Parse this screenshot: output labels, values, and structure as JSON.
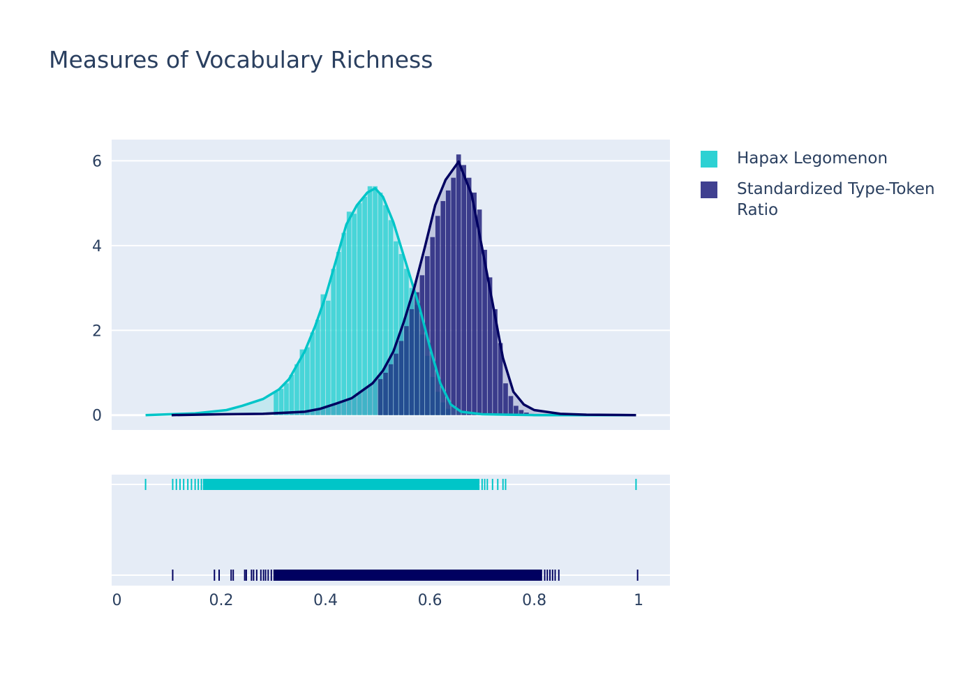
{
  "chart_data": {
    "type": "histogram",
    "title": "Measures of Vocabulary Richness",
    "xlim": [
      -0.01,
      1.06
    ],
    "ylim": [
      -0.35,
      6.5
    ],
    "x_ticks": [
      0,
      0.2,
      0.4,
      0.6,
      0.8,
      1
    ],
    "x_tick_labels": [
      "0",
      "0.2",
      "0.4",
      "0.6",
      "0.8",
      "1"
    ],
    "y_ticks": [
      0,
      2,
      4,
      6
    ],
    "y_tick_labels": [
      "0",
      "2",
      "4",
      "6"
    ],
    "grid": true,
    "legend_position": "right",
    "series": [
      {
        "name": "Hapax Legomenon",
        "color": "#00c5c8",
        "bar_color": "#2dd1d3",
        "histogram": {
          "bin_edges": [
            0.3,
            0.31,
            0.32,
            0.33,
            0.34,
            0.35,
            0.36,
            0.37,
            0.38,
            0.39,
            0.4,
            0.41,
            0.42,
            0.43,
            0.44,
            0.45,
            0.46,
            0.47,
            0.48,
            0.49,
            0.5,
            0.51,
            0.52,
            0.53,
            0.54,
            0.55,
            0.56,
            0.57,
            0.58,
            0.59,
            0.6,
            0.61,
            0.62,
            0.63,
            0.64
          ],
          "density": [
            0.55,
            0.62,
            0.75,
            0.95,
            1.2,
            1.55,
            1.6,
            1.95,
            2.25,
            2.85,
            2.7,
            3.45,
            3.85,
            4.3,
            4.8,
            4.75,
            5.0,
            5.15,
            5.4,
            5.4,
            5.25,
            4.95,
            4.6,
            4.1,
            3.8,
            3.45,
            3.0,
            2.6,
            1.9,
            1.4,
            0.9,
            0.55,
            0.3,
            0.15
          ]
        },
        "kde": {
          "x": [
            0.055,
            0.1,
            0.15,
            0.21,
            0.24,
            0.28,
            0.31,
            0.33,
            0.36,
            0.38,
            0.4,
            0.42,
            0.44,
            0.46,
            0.48,
            0.495,
            0.51,
            0.53,
            0.55,
            0.58,
            0.6,
            0.62,
            0.64,
            0.66,
            0.7,
            0.75,
            0.8,
            0.9,
            0.995
          ],
          "y": [
            0.0,
            0.02,
            0.04,
            0.12,
            0.22,
            0.38,
            0.6,
            0.85,
            1.5,
            2.1,
            2.8,
            3.65,
            4.5,
            4.95,
            5.25,
            5.35,
            5.15,
            4.55,
            3.75,
            2.55,
            1.6,
            0.75,
            0.25,
            0.08,
            0.02,
            0.01,
            0.0,
            0.0,
            0.0
          ]
        },
        "rug": {
          "isolated": [
            0.055,
            0.107,
            0.114,
            0.121,
            0.128,
            0.136,
            0.143,
            0.15,
            0.156,
            0.162,
            0.995
          ],
          "dense_range": [
            0.165,
            0.695
          ],
          "tail": [
            0.7,
            0.705,
            0.71,
            0.72,
            0.73,
            0.74,
            0.745
          ]
        }
      },
      {
        "name": "Standardized Type-Token Ratio",
        "color": "#000060",
        "bar_color": "#1c1c78",
        "histogram": {
          "bin_edges": [
            0.5,
            0.51,
            0.52,
            0.53,
            0.54,
            0.55,
            0.56,
            0.57,
            0.58,
            0.59,
            0.6,
            0.61,
            0.62,
            0.63,
            0.64,
            0.65,
            0.66,
            0.67,
            0.68,
            0.69,
            0.7,
            0.71,
            0.72,
            0.73,
            0.74,
            0.75,
            0.76,
            0.77,
            0.78,
            0.79,
            0.8
          ],
          "density": [
            0.85,
            1.0,
            1.2,
            1.45,
            1.75,
            2.1,
            2.5,
            2.9,
            3.3,
            3.75,
            4.2,
            4.7,
            5.05,
            5.3,
            5.6,
            6.15,
            5.9,
            5.6,
            5.25,
            4.85,
            3.9,
            3.25,
            2.5,
            1.7,
            0.75,
            0.45,
            0.22,
            0.12,
            0.06,
            0.03
          ]
        },
        "kde": {
          "x": [
            0.105,
            0.2,
            0.28,
            0.36,
            0.39,
            0.42,
            0.45,
            0.49,
            0.51,
            0.53,
            0.55,
            0.57,
            0.59,
            0.61,
            0.63,
            0.655,
            0.68,
            0.7,
            0.72,
            0.74,
            0.76,
            0.78,
            0.8,
            0.85,
            0.9,
            0.995
          ],
          "y": [
            0.0,
            0.02,
            0.03,
            0.08,
            0.15,
            0.27,
            0.4,
            0.75,
            1.05,
            1.5,
            2.2,
            3.0,
            3.95,
            4.95,
            5.55,
            5.98,
            5.2,
            3.95,
            2.65,
            1.35,
            0.55,
            0.25,
            0.12,
            0.03,
            0.01,
            0.0
          ]
        },
        "rug": {
          "isolated": [
            0.107,
            0.187,
            0.196,
            0.219,
            0.223,
            0.245,
            0.248,
            0.258,
            0.262,
            0.268,
            0.276,
            0.281,
            0.285,
            0.29,
            0.296
          ],
          "dense_range": [
            0.3,
            0.815
          ],
          "tail": [
            0.82,
            0.825,
            0.83,
            0.835,
            0.84,
            0.847,
            0.998
          ]
        }
      }
    ]
  }
}
